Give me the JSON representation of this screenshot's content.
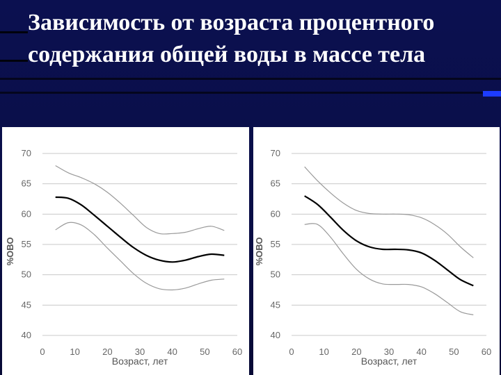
{
  "slide": {
    "title_line1": "Зависимость от возраста процентного",
    "title_line2": "содержания общей воды в массе тела"
  },
  "chart_data": [
    {
      "type": "line",
      "ylabel": "%ОВО",
      "xlabel": "Возраст, лет",
      "xlim": [
        0,
        60
      ],
      "ylim": [
        40,
        70
      ],
      "xticks": [
        0,
        10,
        20,
        30,
        40,
        50,
        60
      ],
      "yticks": [
        40,
        45,
        50,
        55,
        60,
        65,
        70
      ],
      "grid": true,
      "series": [
        {
          "role": "upper",
          "color": "#999999",
          "x": [
            4,
            8,
            12,
            16,
            20,
            24,
            28,
            32,
            36,
            40,
            44,
            48,
            52,
            56
          ],
          "y": [
            68,
            66.8,
            66,
            65,
            63.6,
            61.8,
            59.8,
            57.8,
            56.8,
            56.8,
            57,
            57.6,
            58,
            57.3
          ]
        },
        {
          "role": "mean",
          "color": "#000000",
          "x": [
            4,
            8,
            12,
            16,
            20,
            24,
            28,
            32,
            36,
            40,
            44,
            48,
            52,
            56
          ],
          "y": [
            62.8,
            62.6,
            61.5,
            59.8,
            58,
            56.2,
            54.5,
            53.2,
            52.4,
            52.1,
            52.4,
            53,
            53.4,
            53.2
          ]
        },
        {
          "role": "lower",
          "color": "#999999",
          "x": [
            4,
            8,
            12,
            16,
            20,
            24,
            28,
            32,
            36,
            40,
            44,
            48,
            52,
            56
          ],
          "y": [
            57.4,
            58.6,
            58.2,
            56.6,
            54.4,
            52.3,
            50.2,
            48.6,
            47.7,
            47.5,
            47.8,
            48.5,
            49.1,
            49.3
          ]
        }
      ]
    },
    {
      "type": "line",
      "ylabel": "%ОВО",
      "xlabel": "Возраст, лет",
      "xlim": [
        0,
        60
      ],
      "ylim": [
        40,
        70
      ],
      "xticks": [
        0,
        10,
        20,
        30,
        40,
        50,
        60
      ],
      "yticks": [
        40,
        45,
        50,
        55,
        60,
        65,
        70
      ],
      "grid": true,
      "series": [
        {
          "role": "upper",
          "color": "#999999",
          "x": [
            4,
            8,
            12,
            16,
            20,
            24,
            28,
            32,
            36,
            40,
            44,
            48,
            52,
            56
          ],
          "y": [
            67.8,
            65.5,
            63.5,
            61.8,
            60.6,
            60.1,
            60,
            60,
            59.9,
            59.4,
            58.3,
            56.7,
            54.6,
            52.8
          ]
        },
        {
          "role": "mean",
          "color": "#000000",
          "x": [
            4,
            8,
            12,
            16,
            20,
            24,
            28,
            32,
            36,
            40,
            44,
            48,
            52,
            56
          ],
          "y": [
            63,
            61.6,
            59.5,
            57.3,
            55.6,
            54.6,
            54.2,
            54.2,
            54.1,
            53.6,
            52.4,
            50.8,
            49.2,
            48.2
          ]
        },
        {
          "role": "lower",
          "color": "#999999",
          "x": [
            4,
            8,
            12,
            16,
            20,
            24,
            28,
            32,
            36,
            40,
            44,
            48,
            52,
            56
          ],
          "y": [
            58.3,
            58.3,
            56.2,
            53.4,
            50.9,
            49.3,
            48.5,
            48.4,
            48.4,
            48,
            46.9,
            45.4,
            43.9,
            43.4
          ]
        }
      ]
    }
  ]
}
